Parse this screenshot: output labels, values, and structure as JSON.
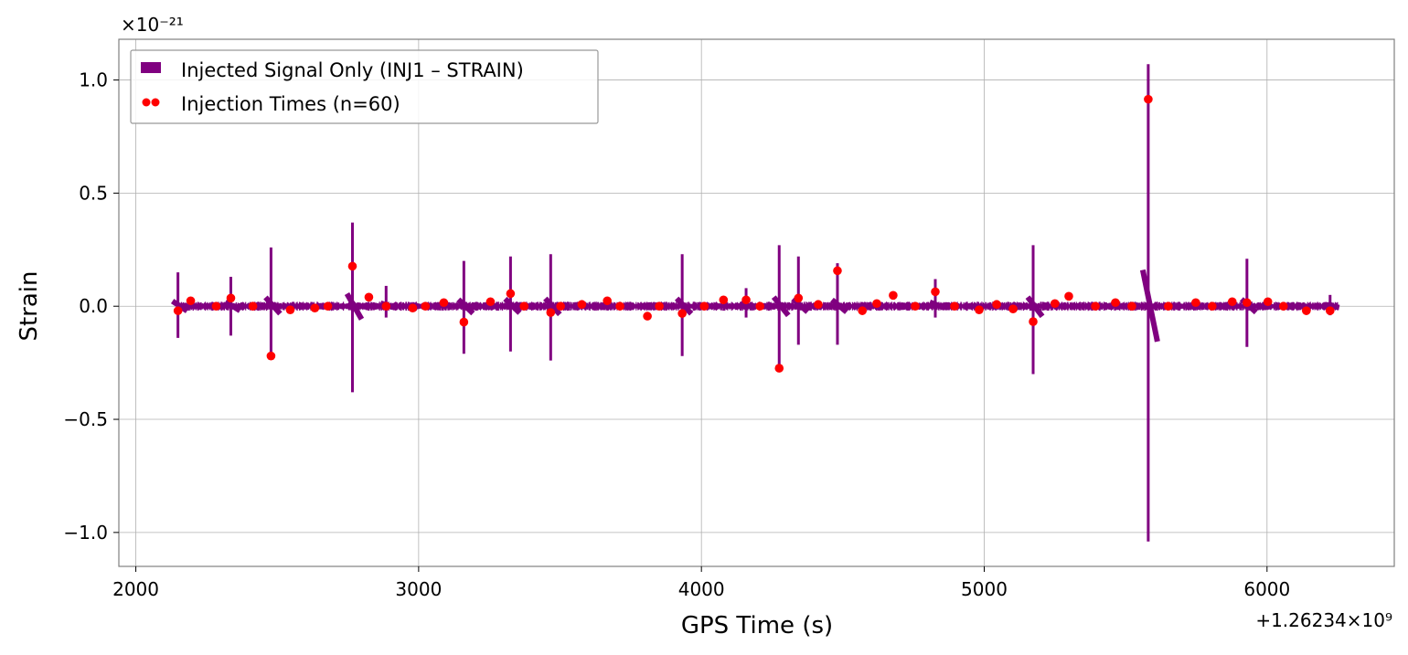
{
  "chart_data": {
    "type": "line",
    "xlabel": "GPS Time (s)",
    "ylabel": "Strain",
    "x_offset_label": "+1.26234×10⁹",
    "y_scale_label": "×10⁻²¹",
    "xlim": [
      1940,
      6450
    ],
    "ylim": [
      -1.15,
      1.18
    ],
    "xticks": [
      2000,
      3000,
      4000,
      5000,
      6000
    ],
    "xtick_labels": [
      "2000",
      "3000",
      "4000",
      "5000",
      "6000"
    ],
    "yticks": [
      1.0,
      0.5,
      0.0,
      -0.5,
      -1.0
    ],
    "ytick_labels": [
      "1.0",
      "0.5",
      "0.0",
      "−0.5",
      "−1.0"
    ],
    "grid": true,
    "legend_placement": "top-left",
    "colors": {
      "signal": "#800080",
      "injections": "#ff0000",
      "grid": "#b0b0b0",
      "frame": "#808080"
    },
    "series": [
      {
        "name": "Injected Signal Only (INJ1 – STRAIN)",
        "kind": "waveform",
        "x_range": [
          2150,
          6250
        ],
        "baseline_band": 0.02,
        "spikes": [
          {
            "x": 2149,
            "max": 0.15,
            "min": -0.14
          },
          {
            "x": 2336,
            "max": 0.13,
            "min": -0.13
          },
          {
            "x": 2478,
            "max": 0.26,
            "min": -0.22
          },
          {
            "x": 2766,
            "max": 0.37,
            "min": -0.38
          },
          {
            "x": 2885,
            "max": 0.09,
            "min": -0.05
          },
          {
            "x": 3160,
            "max": 0.2,
            "min": -0.21
          },
          {
            "x": 3325,
            "max": 0.22,
            "min": -0.2
          },
          {
            "x": 3467,
            "max": 0.23,
            "min": -0.24
          },
          {
            "x": 3932,
            "max": 0.23,
            "min": -0.22
          },
          {
            "x": 4158,
            "max": 0.08,
            "min": -0.05
          },
          {
            "x": 4275,
            "max": 0.27,
            "min": -0.27
          },
          {
            "x": 4343,
            "max": 0.22,
            "min": -0.17
          },
          {
            "x": 4481,
            "max": 0.19,
            "min": -0.17
          },
          {
            "x": 4827,
            "max": 0.12,
            "min": -0.05
          },
          {
            "x": 5173,
            "max": 0.27,
            "min": -0.3
          },
          {
            "x": 5580,
            "max": 1.07,
            "min": -1.04
          },
          {
            "x": 5929,
            "max": 0.21,
            "min": -0.18
          },
          {
            "x": 6223,
            "max": 0.05,
            "min": -0.04
          }
        ]
      },
      {
        "name": "Injection Times (n=60)",
        "kind": "scatter",
        "points": [
          [
            2149,
            -0.02
          ],
          [
            2194,
            0.024
          ],
          [
            2284,
            0
          ],
          [
            2336,
            0.036
          ],
          [
            2414,
            0
          ],
          [
            2478,
            -0.22
          ],
          [
            2546,
            -0.016
          ],
          [
            2633,
            -0.008
          ],
          [
            2679,
            0
          ],
          [
            2766,
            0.177
          ],
          [
            2824,
            0.04
          ],
          [
            2885,
            0
          ],
          [
            2979,
            -0.008
          ],
          [
            3024,
            0
          ],
          [
            3089,
            0.016
          ],
          [
            3160,
            -0.07
          ],
          [
            3254,
            0.02
          ],
          [
            3325,
            0.056
          ],
          [
            3373,
            0
          ],
          [
            3467,
            -0.028
          ],
          [
            3502,
            0
          ],
          [
            3577,
            0.008
          ],
          [
            3667,
            0.024
          ],
          [
            3712,
            0
          ],
          [
            3809,
            -0.044
          ],
          [
            3851,
            0
          ],
          [
            3932,
            -0.032
          ],
          [
            4010,
            0
          ],
          [
            4078,
            0.028
          ],
          [
            4158,
            0.028
          ],
          [
            4207,
            0
          ],
          [
            4275,
            -0.274
          ],
          [
            4343,
            0.036
          ],
          [
            4413,
            0.008
          ],
          [
            4481,
            0.157
          ],
          [
            4569,
            -0.02
          ],
          [
            4620,
            0.012
          ],
          [
            4678,
            0.048
          ],
          [
            4756,
            0
          ],
          [
            4827,
            0.064
          ],
          [
            4895,
            0
          ],
          [
            4982,
            -0.016
          ],
          [
            5044,
            0.008
          ],
          [
            5102,
            -0.012
          ],
          [
            5173,
            -0.068
          ],
          [
            5250,
            0.012
          ],
          [
            5299,
            0.044
          ],
          [
            5393,
            0
          ],
          [
            5464,
            0.016
          ],
          [
            5522,
            0
          ],
          [
            5580,
            0.915
          ],
          [
            5651,
            0
          ],
          [
            5748,
            0.016
          ],
          [
            5806,
            0
          ],
          [
            5877,
            0.02
          ],
          [
            5929,
            0.016
          ],
          [
            6003,
            0.02
          ],
          [
            6058,
            0
          ],
          [
            6139,
            -0.02
          ],
          [
            6223,
            -0.02
          ]
        ]
      }
    ]
  }
}
